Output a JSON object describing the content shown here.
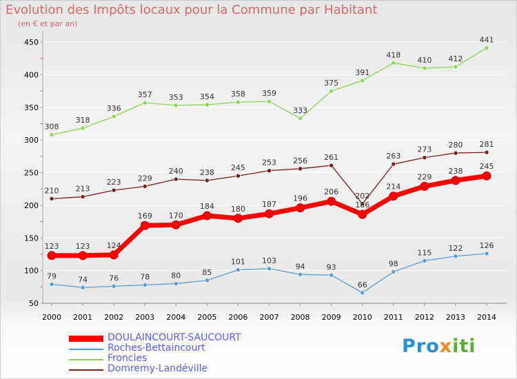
{
  "title": "Evolution des Impôts locaux pour la Commune par Habitant",
  "subtitle": "(en € et par an)",
  "logo": {
    "part1": "Pro",
    "part2": "x",
    "part3": "iti"
  },
  "colors": {
    "title": "#d46a6a",
    "legend_text": "#5a5aff"
  },
  "chart_data": {
    "type": "line",
    "title": "Evolution des Impôts locaux pour la Commune par Habitant",
    "ylabel": "(en € et par an)",
    "xlabel": "",
    "ylim": [
      50,
      450
    ],
    "yticks": [
      "50",
      "100",
      "150",
      "200",
      "250",
      "300",
      "350",
      "400",
      "450"
    ],
    "categories": [
      "2000",
      "2001",
      "2002",
      "2003",
      "2004",
      "2005",
      "2006",
      "2007",
      "2008",
      "2009",
      "2010",
      "2011",
      "2012",
      "2013",
      "2014"
    ],
    "legend_position": "bottom-left",
    "series": [
      {
        "name": "Roches-Bettaincourt",
        "color": "#5b9bd5",
        "style": "thin",
        "values": [
          79,
          74,
          76,
          78,
          80,
          85,
          101,
          103,
          94,
          93,
          66,
          98,
          115,
          122,
          126
        ]
      },
      {
        "name": "Froncles",
        "color": "#8fd45a",
        "style": "thin",
        "values": [
          308,
          318,
          336,
          357,
          353,
          354,
          358,
          359,
          333,
          375,
          391,
          418,
          410,
          412,
          441
        ]
      },
      {
        "name": "Domremy-Landéville",
        "color": "#7a1e1e",
        "style": "thin",
        "values": [
          210,
          213,
          223,
          229,
          240,
          238,
          245,
          253,
          256,
          261,
          202,
          263,
          273,
          280,
          281
        ]
      },
      {
        "name": "DOULAINCOURT-SAUCOURT",
        "color": "#ff0000",
        "style": "thick",
        "values": [
          123,
          123,
          124,
          169,
          170,
          184,
          180,
          187,
          196,
          206,
          186,
          214,
          229,
          238,
          245
        ]
      }
    ],
    "legend_order": [
      "DOULAINCOURT-SAUCOURT",
      "Roches-Bettaincourt",
      "Froncles",
      "Domremy-Landéville"
    ]
  }
}
